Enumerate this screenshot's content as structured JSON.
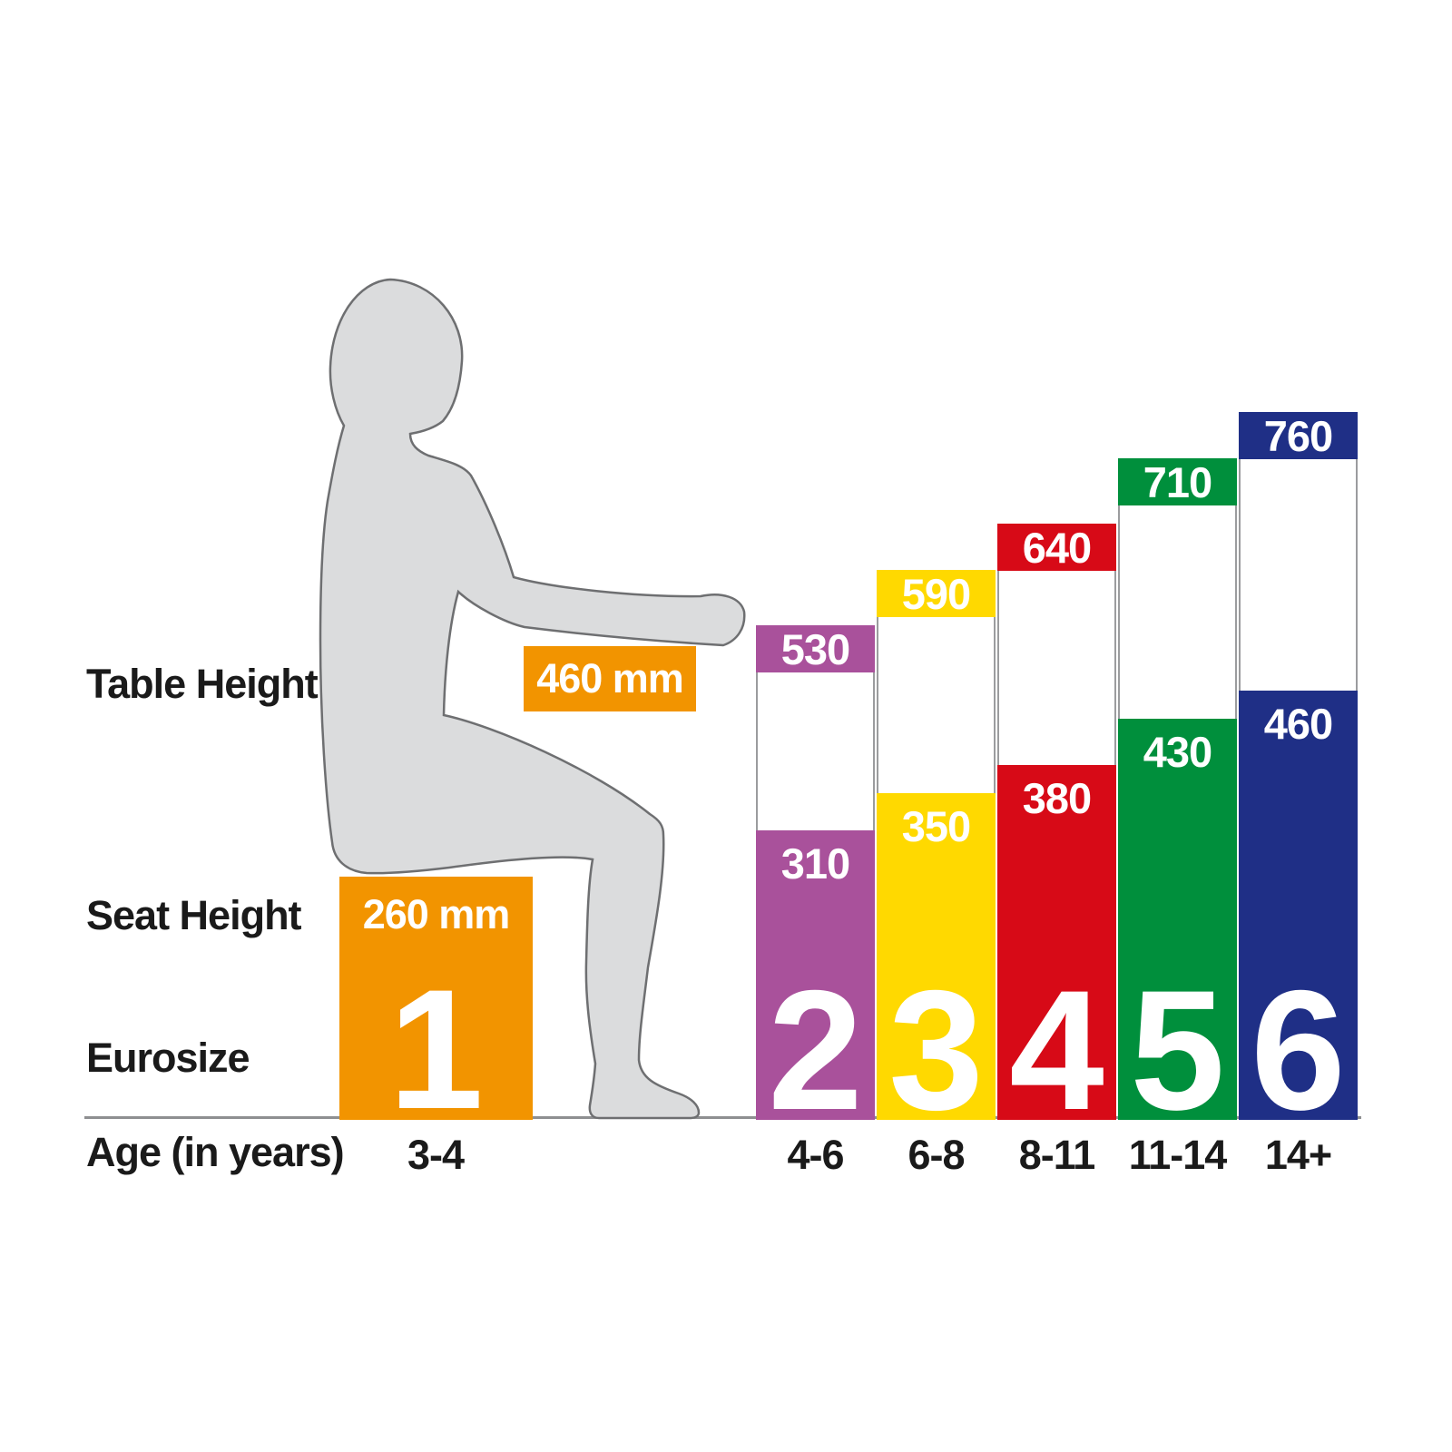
{
  "labels": {
    "table_height": "Table Height",
    "seat_height": "Seat Height",
    "eurosize": "Eurosize",
    "age": "Age (in years)"
  },
  "chart_data": {
    "type": "bar",
    "unit": "mm",
    "xlabel": "Age (in years)",
    "categories_eurosize": [
      "1",
      "2",
      "3",
      "4",
      "5",
      "6"
    ],
    "categories_age": [
      "3-4",
      "4-6",
      "6-8",
      "8-11",
      "11-14",
      "14+"
    ],
    "series": [
      {
        "name": "Table Height",
        "values": [
          460,
          530,
          590,
          640,
          710,
          760
        ]
      },
      {
        "name": "Seat Height",
        "values": [
          260,
          310,
          350,
          380,
          430,
          460
        ]
      }
    ],
    "bars": [
      {
        "eurosize": "1",
        "age": "3-4",
        "table_height_mm": 460,
        "seat_height_mm": 260,
        "table_label": "460 mm",
        "seat_label": "260 mm",
        "color": "#F29400"
      },
      {
        "eurosize": "2",
        "age": "4-6",
        "table_height_mm": 530,
        "seat_height_mm": 310,
        "color": "#A9519B"
      },
      {
        "eurosize": "3",
        "age": "6-8",
        "table_height_mm": 590,
        "seat_height_mm": 350,
        "color": "#FFD900"
      },
      {
        "eurosize": "4",
        "age": "8-11",
        "table_height_mm": 640,
        "seat_height_mm": 380,
        "color": "#D70A17"
      },
      {
        "eurosize": "5",
        "age": "11-14",
        "table_height_mm": 710,
        "seat_height_mm": 430,
        "color": "#008F3C"
      },
      {
        "eurosize": "6",
        "age": "14+",
        "table_height_mm": 760,
        "seat_height_mm": 460,
        "color": "#1F2F86"
      }
    ]
  },
  "colors": {
    "silhouette_fill": "#DBDCDD",
    "silhouette_outline": "#6E6F71",
    "baseline": "#8E8F91",
    "label_text": "#1A1A1A",
    "bar_value_text": "#FFFFFF"
  }
}
